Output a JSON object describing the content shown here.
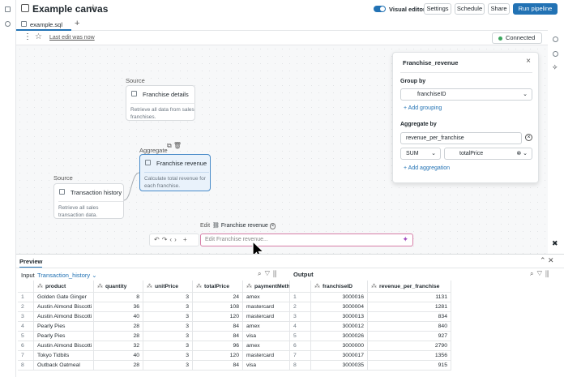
{
  "header": {
    "title": "Example canvas",
    "visual_editor": "Visual editor",
    "buttons": [
      "Settings",
      "Schedule",
      "Share",
      "Run pipeline"
    ]
  },
  "tab": {
    "file": "example.sql"
  },
  "toolbar": {
    "last_edit": "Last edit was now",
    "status": "Connected"
  },
  "nodes": [
    {
      "kind": "Source",
      "label": "Franchise details",
      "description": "Retrieve all data from sales franchises."
    },
    {
      "kind": "Aggregate",
      "label": "Franchise revenue",
      "description": "Calculate total revenue for each franchise."
    },
    {
      "kind": "Source",
      "label": "Transaction history",
      "description": "Retrieve all sales transaction data."
    }
  ],
  "edit_bar": {
    "label": "Edit",
    "target": "Franchise revenue",
    "placeholder": "Edit Franchise revenue..."
  },
  "panel": {
    "title": "Franchise_revenue",
    "group_by": "Group by",
    "group_field": "franchiseID",
    "add_grouping": "Add grouping",
    "aggregate_by": "Aggregate by",
    "alias": "revenue_per_franchise",
    "function": "SUM",
    "field": "totalPrice",
    "add_aggregation": "Add aggregation"
  },
  "preview": {
    "title": "Preview",
    "input_label": "Input",
    "input_source": "Transaction_history",
    "output_label": "Output"
  },
  "input_table": {
    "columns": [
      "product",
      "quantity",
      "unitPrice",
      "totalPrice",
      "paymentMethod"
    ],
    "rows": [
      [
        1,
        "Golden Gate Ginger",
        8,
        3,
        24,
        "amex"
      ],
      [
        2,
        "Austin Almond Biscotti",
        36,
        3,
        108,
        "mastercard"
      ],
      [
        3,
        "Austin Almond Biscotti",
        40,
        3,
        120,
        "mastercard"
      ],
      [
        4,
        "Pearly Pies",
        28,
        3,
        84,
        "amex"
      ],
      [
        5,
        "Pearly Pies",
        28,
        3,
        84,
        "visa"
      ],
      [
        6,
        "Austin Almond Biscotti",
        32,
        3,
        96,
        "amex"
      ],
      [
        7,
        "Tokyo Tidbits",
        40,
        3,
        120,
        "mastercard"
      ],
      [
        8,
        "Outback Oatmeal",
        28,
        3,
        84,
        "visa"
      ]
    ]
  },
  "output_table": {
    "columns": [
      "franchiseID",
      "revenue_per_franchise"
    ],
    "rows": [
      [
        1,
        3000016,
        1131
      ],
      [
        2,
        3000004,
        1281
      ],
      [
        3,
        3000013,
        834
      ],
      [
        4,
        3000012,
        840
      ],
      [
        5,
        3000026,
        927
      ],
      [
        6,
        3000000,
        2790
      ],
      [
        7,
        3000017,
        1356
      ],
      [
        8,
        3000035,
        915
      ]
    ]
  }
}
